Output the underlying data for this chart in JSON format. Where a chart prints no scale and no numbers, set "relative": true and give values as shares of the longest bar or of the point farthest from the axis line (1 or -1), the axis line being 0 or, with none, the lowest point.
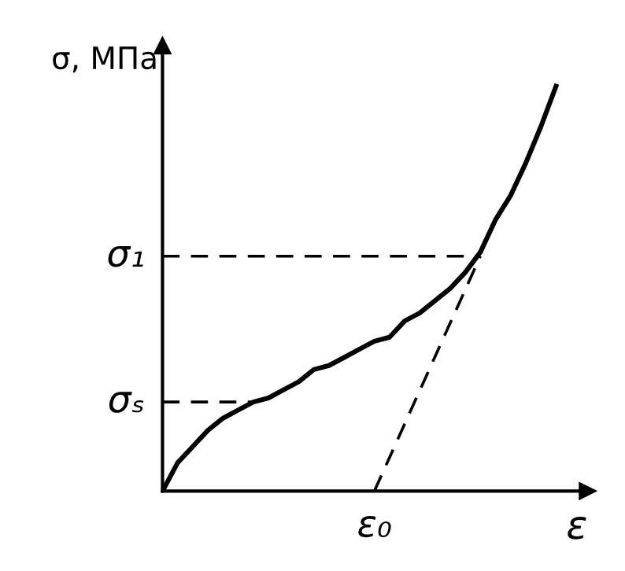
{
  "chart_data": {
    "type": "line",
    "relative": true,
    "xlabel": "ε",
    "ylabel": "σ, МПа",
    "categories": [
      null,
      null,
      null,
      null,
      null,
      null,
      null,
      null,
      null,
      null,
      null,
      null,
      null,
      null,
      null,
      null,
      null,
      null,
      null,
      null,
      null,
      null,
      null,
      null,
      null,
      null,
      null
    ],
    "series": [
      {
        "color": "#000000",
        "values": [
          0,
          0.07,
          0.11,
          0.15,
          0.18,
          0.2,
          0.22,
          0.23,
          0.25,
          0.27,
          0.3,
          0.31,
          0.33,
          0.35,
          0.37,
          0.38,
          0.42,
          0.44,
          0.47,
          0.5,
          0.54,
          0.59,
          0.67,
          0.73,
          0.81,
          0.9,
          1.0
        ]
      },
      {
        "color": "#000000",
        "name": "ε₀",
        "line_style": "dashed",
        "values": [
          null,
          null,
          null,
          null,
          null,
          null,
          null,
          null,
          null,
          null,
          null,
          null,
          null,
          null,
          0,
          null,
          null,
          null,
          null,
          null,
          null,
          0.58,
          null,
          null,
          null,
          null,
          null
        ]
      }
    ],
    "ref_lines": [
      {
        "axis": "y",
        "value": 0.58,
        "label": "σ₁",
        "line_style": "dashed"
      },
      {
        "axis": "y",
        "value": 0.22,
        "label": "σₛ",
        "line_style": "dashed"
      }
    ]
  }
}
